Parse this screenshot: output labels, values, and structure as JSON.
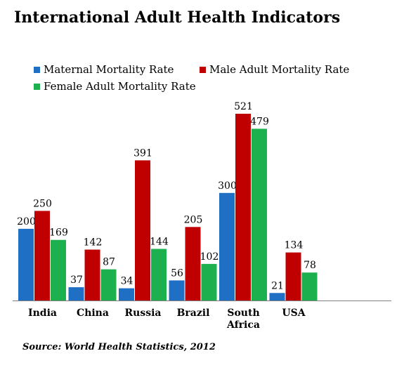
{
  "chart_data": {
    "type": "bar",
    "title": "International Adult Health Indicators",
    "categories": [
      "India",
      "China",
      "Russia",
      "Brazil",
      "South Africa",
      "USA"
    ],
    "series": [
      {
        "name": "Maternal Mortality Rate",
        "color": "#1F6FC4",
        "values": [
          200,
          37,
          34,
          56,
          300,
          21
        ]
      },
      {
        "name": "Male Adult Mortality Rate",
        "color": "#C00000",
        "values": [
          250,
          142,
          391,
          205,
          521,
          134
        ]
      },
      {
        "name": "Female Adult Mortality Rate",
        "color": "#1DB04E",
        "values": [
          169,
          87,
          144,
          102,
          479,
          78
        ]
      }
    ],
    "ylim": [
      0,
      521
    ],
    "legend": "top-left",
    "grid": false,
    "source": "Source: World Health Statistics, 2012"
  }
}
